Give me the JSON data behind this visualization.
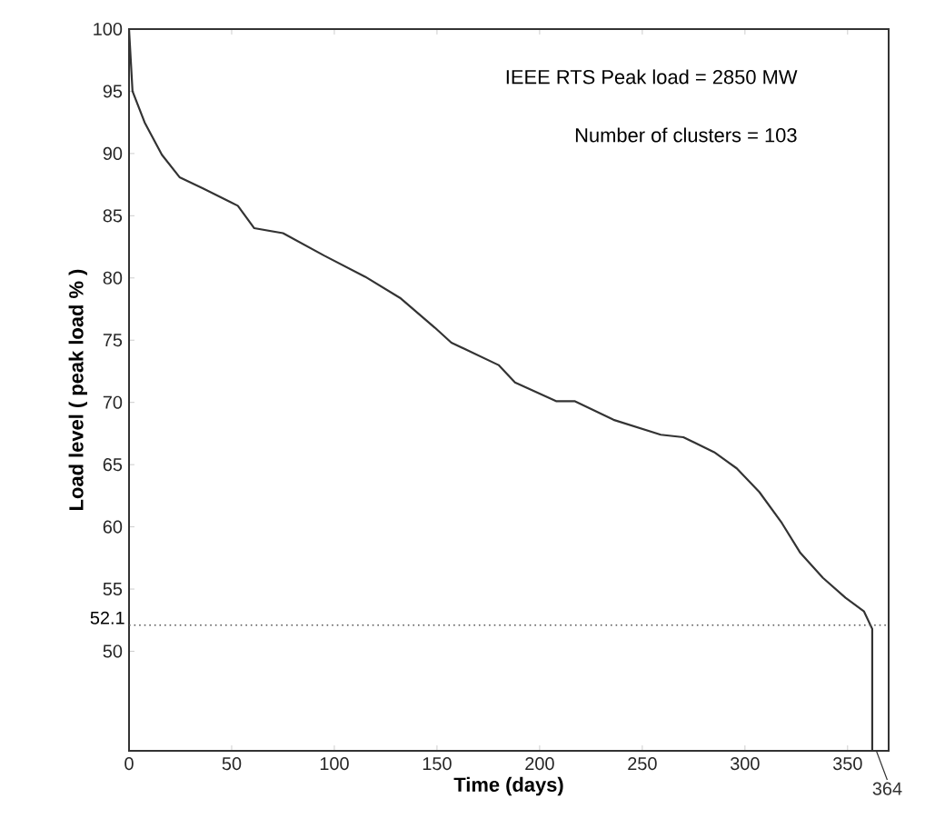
{
  "chart_data": {
    "type": "line",
    "xlabel": "Time (days)",
    "ylabel": "Load level ( peak load % )",
    "xlim": [
      0,
      370
    ],
    "ylim": [
      42,
      100
    ],
    "xticks": [
      0,
      50,
      100,
      150,
      200,
      250,
      300,
      350
    ],
    "yticks": [
      50,
      55,
      60,
      65,
      70,
      75,
      80,
      85,
      90,
      95,
      100
    ],
    "series": [
      {
        "color": "#333333",
        "x": [
          0,
          1.7,
          7.6,
          16,
          24.6,
          36,
          53,
          61,
          75,
          95,
          115,
          132,
          149,
          157,
          180,
          188,
          208,
          217,
          236,
          259,
          270,
          285,
          296,
          307,
          318,
          327,
          338,
          349,
          358,
          362,
          362
        ],
        "values": [
          100,
          95,
          92.5,
          89.9,
          88.1,
          87.2,
          85.8,
          84,
          83.6,
          81.8,
          80.1,
          78.4,
          76,
          74.8,
          73,
          71.6,
          70.1,
          70.1,
          68.6,
          67.4,
          67.2,
          66,
          64.7,
          62.8,
          60.3,
          57.9,
          55.9,
          54.3,
          53.2,
          51.8,
          42
        ]
      }
    ],
    "ref_lines": [
      {
        "axis": "y",
        "value": 52.1,
        "label": "52.1",
        "line_style": "dotted",
        "color": "#555555"
      }
    ],
    "annotations": [
      "IEEE RTS  Peak load = 2850 MW",
      "Number of clusters = 103",
      {
        "text": "364",
        "x": 364,
        "y": 42
      }
    ],
    "grid": false,
    "marker": "none",
    "line_style": "solid"
  }
}
